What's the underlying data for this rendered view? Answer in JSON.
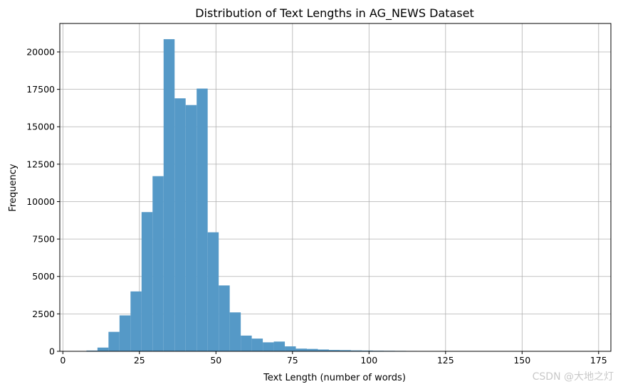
{
  "chart_data": {
    "type": "bar",
    "title": "Distribution of Text Lengths in AG_NEWS Dataset",
    "xlabel": "Text Length (number of words)",
    "ylabel": "Frequency",
    "xlim": [
      -1,
      179
    ],
    "ylim": [
      0,
      21900
    ],
    "xticks": [
      0,
      25,
      50,
      75,
      100,
      125,
      150,
      175
    ],
    "yticks": [
      0,
      2500,
      5000,
      7500,
      10000,
      12500,
      15000,
      17500,
      20000
    ],
    "grid": true,
    "bar_color": "#5599c7",
    "bins": [
      {
        "x0": 7.7,
        "x1": 11.3,
        "value": 50
      },
      {
        "x0": 11.3,
        "x1": 14.9,
        "value": 250
      },
      {
        "x0": 14.9,
        "x1": 18.5,
        "value": 1300
      },
      {
        "x0": 18.5,
        "x1": 22.1,
        "value": 2400
      },
      {
        "x0": 22.1,
        "x1": 25.7,
        "value": 4000
      },
      {
        "x0": 25.7,
        "x1": 29.3,
        "value": 9300
      },
      {
        "x0": 29.3,
        "x1": 32.9,
        "value": 11700
      },
      {
        "x0": 32.9,
        "x1": 36.5,
        "value": 20850
      },
      {
        "x0": 36.5,
        "x1": 40.1,
        "value": 16900
      },
      {
        "x0": 40.1,
        "x1": 43.7,
        "value": 16450
      },
      {
        "x0": 43.7,
        "x1": 47.3,
        "value": 17550
      },
      {
        "x0": 47.3,
        "x1": 50.9,
        "value": 7950
      },
      {
        "x0": 50.9,
        "x1": 54.5,
        "value": 4400
      },
      {
        "x0": 54.5,
        "x1": 58.1,
        "value": 2600
      },
      {
        "x0": 58.1,
        "x1": 61.7,
        "value": 1050
      },
      {
        "x0": 61.7,
        "x1": 65.3,
        "value": 850
      },
      {
        "x0": 65.3,
        "x1": 68.9,
        "value": 600
      },
      {
        "x0": 68.9,
        "x1": 72.5,
        "value": 650
      },
      {
        "x0": 72.5,
        "x1": 76.1,
        "value": 330
      },
      {
        "x0": 76.1,
        "x1": 79.7,
        "value": 180
      },
      {
        "x0": 79.7,
        "x1": 83.3,
        "value": 160
      },
      {
        "x0": 83.3,
        "x1": 86.9,
        "value": 120
      },
      {
        "x0": 86.9,
        "x1": 90.5,
        "value": 90
      },
      {
        "x0": 90.5,
        "x1": 94.1,
        "value": 80
      },
      {
        "x0": 94.1,
        "x1": 97.7,
        "value": 60
      },
      {
        "x0": 97.7,
        "x1": 101.3,
        "value": 50
      },
      {
        "x0": 101.3,
        "x1": 104.9,
        "value": 40
      },
      {
        "x0": 104.9,
        "x1": 108.5,
        "value": 35
      },
      {
        "x0": 108.5,
        "x1": 112.1,
        "value": 30
      },
      {
        "x0": 112.1,
        "x1": 115.7,
        "value": 25
      },
      {
        "x0": 115.7,
        "x1": 119.3,
        "value": 22
      },
      {
        "x0": 119.3,
        "x1": 122.9,
        "value": 18
      },
      {
        "x0": 122.9,
        "x1": 126.5,
        "value": 15
      },
      {
        "x0": 126.5,
        "x1": 130.1,
        "value": 12
      }
    ]
  },
  "watermark": "CSDN @大地之灯"
}
